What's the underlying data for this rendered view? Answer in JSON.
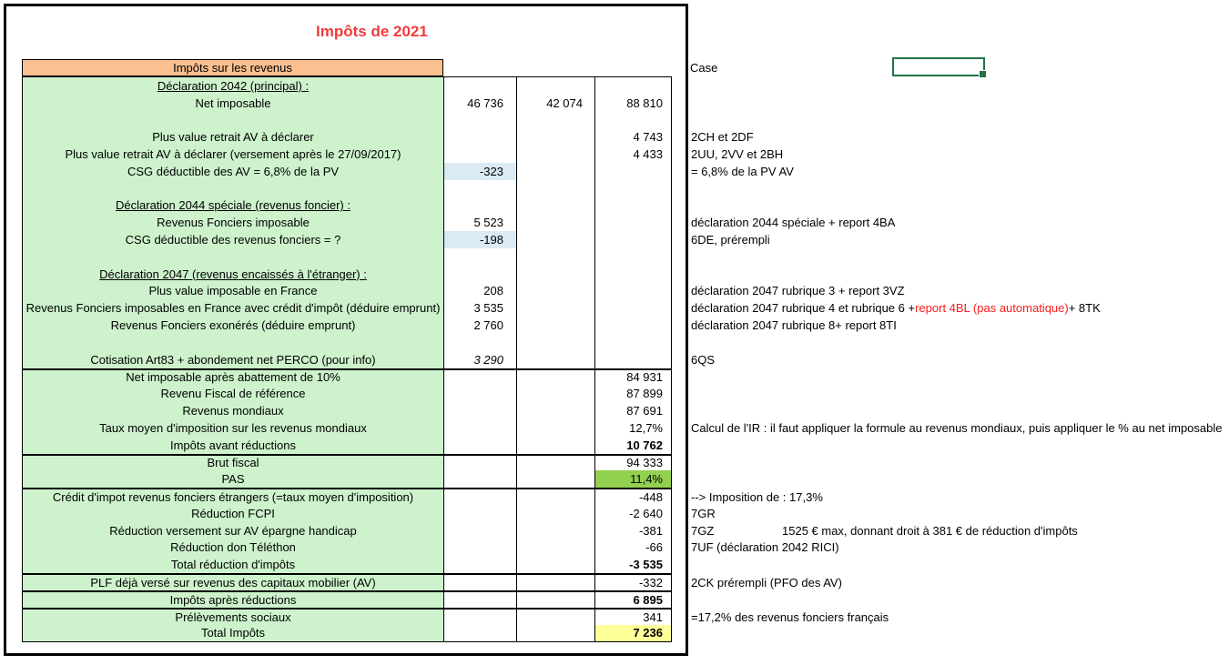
{
  "title": "Impôts de 2021",
  "annotations": {
    "case_label": "Case"
  },
  "colors": {
    "title_red": "#F23B3B",
    "header_orange": "#FAC090",
    "body_green": "#CDF2CC",
    "highlight_blue": "#DBEBF5",
    "pas_green": "#92D050",
    "total_yellow": "#FFFF99",
    "selection_green": "#217346",
    "note_red": "#FF1A1A"
  },
  "table": {
    "header": "Impôts sur les revenus",
    "rows": [
      {
        "label": "Déclaration 2042 (principal) :",
        "u": true
      },
      {
        "label": "Net imposable",
        "v1": "46 736",
        "v2": "42 074",
        "v3": "88 810"
      },
      {},
      {
        "label": "Plus value retrait AV à déclarer",
        "v3": "4 743",
        "note": "2CH et 2DF"
      },
      {
        "label": "Plus value retrait AV à déclarer (versement après le 27/09/2017)",
        "v3": "4 433",
        "note": "2UU, 2VV et 2BH"
      },
      {
        "label": "CSG déductible des AV = 6,8% de la PV",
        "v1": "-323",
        "v1bg": "blue",
        "note": "= 6,8% de la PV AV"
      },
      {},
      {
        "label": "Déclaration 2044 spéciale (revenus foncier) :",
        "u": true
      },
      {
        "label": "Revenus Fonciers imposable",
        "v1": "5 523",
        "note": "déclaration 2044 spéciale + report 4BA"
      },
      {
        "label": "CSG déductible des revenus fonciers = ?",
        "v1": "-198",
        "v1bg": "blue",
        "note": "6DE, prérempli"
      },
      {},
      {
        "label": "Déclaration 2047 (revenus encaissés à l'étranger) :",
        "u": true
      },
      {
        "label": "Plus value imposable en France",
        "v1": "208",
        "note": "déclaration 2047 rubrique 3 + report 3VZ"
      },
      {
        "label": "Revenus Fonciers imposables en France avec crédit d'impôt (déduire emprunt)",
        "v1": "3 535",
        "note_parts": [
          {
            "t": "déclaration 2047 rubrique 4 et rubrique 6 + "
          },
          {
            "t": "report 4BL (pas automatique)",
            "red": true
          },
          {
            "t": "  + 8TK"
          }
        ]
      },
      {
        "label": "Revenus Fonciers exonérés (déduire emprunt)",
        "v1": "2 760",
        "note": "déclaration 2047 rubrique 8+ report 8TI"
      },
      {},
      {
        "label": "Cotisation Art83 + abondement net PERCO (pour info)",
        "v1": "3 290",
        "i": true,
        "note": "6QS"
      },
      {
        "label": "Net imposable après abattement de 10%",
        "v3": "84 931",
        "sec": true
      },
      {
        "label": "Revenu Fiscal de référence",
        "v3": "87 899"
      },
      {
        "label": "Revenus mondiaux",
        "v3": "87 691"
      },
      {
        "label": "Taux moyen d'imposition sur les revenus mondiaux",
        "v3": "12,7%",
        "note": "Calcul de l'IR : il faut appliquer la formule au revenus mondiaux, puis appliquer le % au net imposable"
      },
      {
        "label": "Impôts avant réductions",
        "v3": "10 762",
        "b": true
      },
      {
        "label": "Brut fiscal",
        "v3": "94 333",
        "sec": true
      },
      {
        "label": "PAS",
        "v3": "11,4%",
        "v3bg": "green"
      },
      {
        "label": "Crédit d'impot revenus fonciers étrangers (=taux moyen d'imposition)",
        "v3": "-448",
        "sec": true,
        "note": "--> Imposition de :  17,3%"
      },
      {
        "label": "Réduction FCPI",
        "v3": "-2 640",
        "note": "7GR"
      },
      {
        "label": "Réduction versement sur AV épargne handicap",
        "v3": "-381",
        "note": "7GZ",
        "note2": "1525 € max, donnant droit à 381 € de réduction d'impôts"
      },
      {
        "label": "Réduction don Téléthon",
        "v3": "-66",
        "note": "7UF (déclaration 2042 RICI)"
      },
      {
        "label": "Total réduction d'impôts",
        "v3": "-3 535",
        "b": true
      },
      {
        "label": "PLF déjà versé sur revenus des capitaux mobilier (AV)",
        "v3": "-332",
        "sec": true,
        "note": "2CK prérempli (PFO des AV)"
      },
      {
        "label": "Impôts après réductions",
        "v3": "6 895",
        "b": true,
        "sec": true
      },
      {
        "label": "Prélèvements sociaux",
        "v3": "341",
        "sec": true,
        "note": "=17,2% des revenus fonciers français"
      },
      {
        "label": "Total Impôts",
        "v3": "7 236",
        "b": true,
        "v3bg": "yellow"
      }
    ]
  }
}
